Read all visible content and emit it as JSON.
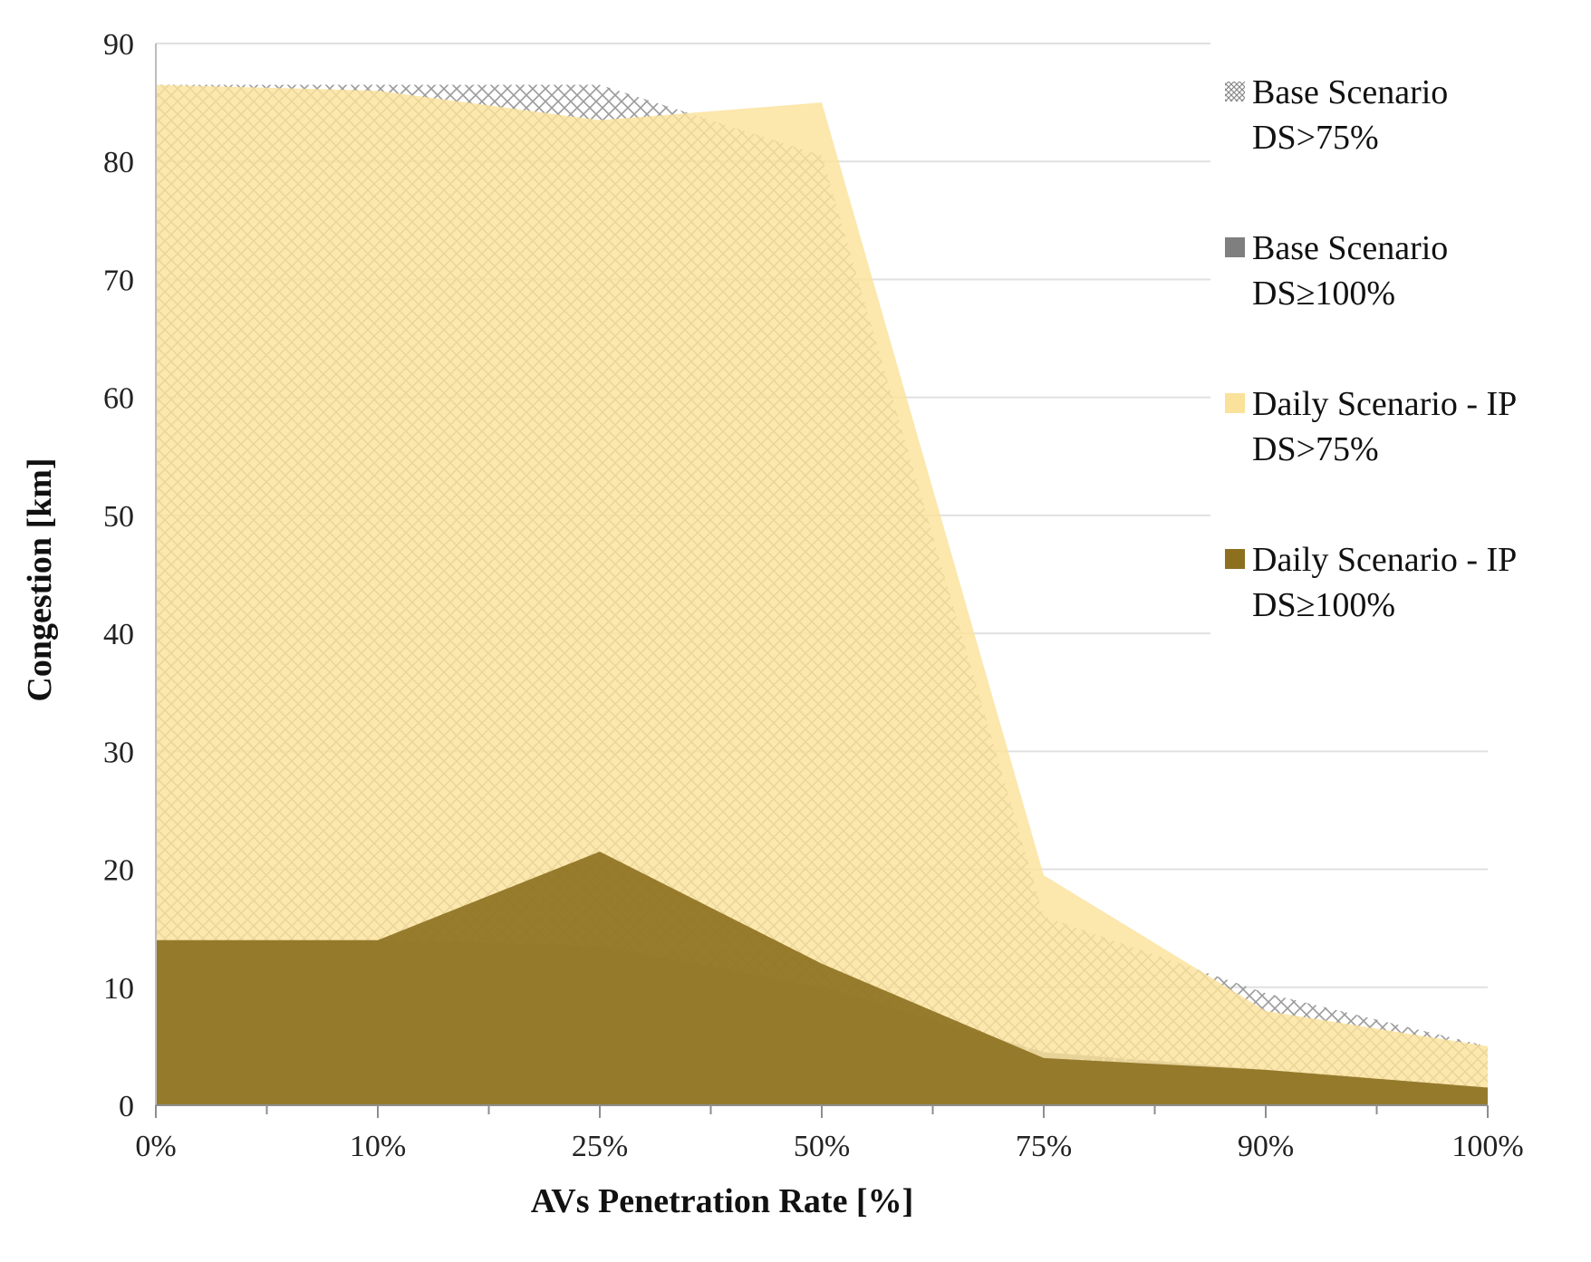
{
  "chart_data": {
    "type": "area",
    "title": "",
    "xlabel": "AVs Penetration Rate [%]",
    "ylabel": "Congestion [km]",
    "categories": [
      "0%",
      "10%",
      "25%",
      "50%",
      "75%",
      "90%",
      "100%"
    ],
    "ylim": [
      0,
      90
    ],
    "yticks": [
      0,
      10,
      20,
      30,
      40,
      50,
      60,
      70,
      80,
      90
    ],
    "grid": true,
    "legend_position": "right",
    "series": [
      {
        "name": "Base Scenario DS>75%",
        "legend_lines": [
          "Base Scenario",
          "DS>75%"
        ],
        "pattern": "crosshatch-light",
        "color": "#b8b8b8",
        "values": [
          86.5,
          86.5,
          86.5,
          80.5,
          16,
          9.5,
          5
        ]
      },
      {
        "name": "Base Scenario DS≥100%",
        "legend_lines": [
          "Base Scenario",
          "DS≥100%"
        ],
        "pattern": "dotted-gray",
        "color": "#8a8a8a",
        "values": [
          14,
          14,
          13.5,
          10,
          4.5,
          3,
          1.5
        ]
      },
      {
        "name": "Daily Scenario - IP DS>75%",
        "legend_lines": [
          "Daily Scenario - IP",
          "DS>75%"
        ],
        "pattern": "solid",
        "color": "#fbe29a",
        "values": [
          86.5,
          86,
          83.5,
          85,
          19.5,
          8,
          5
        ]
      },
      {
        "name": "Daily Scenario - IP DS≥100%",
        "legend_lines": [
          "Daily Scenario - IP",
          "DS≥100%"
        ],
        "pattern": "solid",
        "color": "#8c7020",
        "values": [
          14,
          14,
          21.5,
          12,
          4,
          3,
          1.5
        ]
      }
    ]
  }
}
